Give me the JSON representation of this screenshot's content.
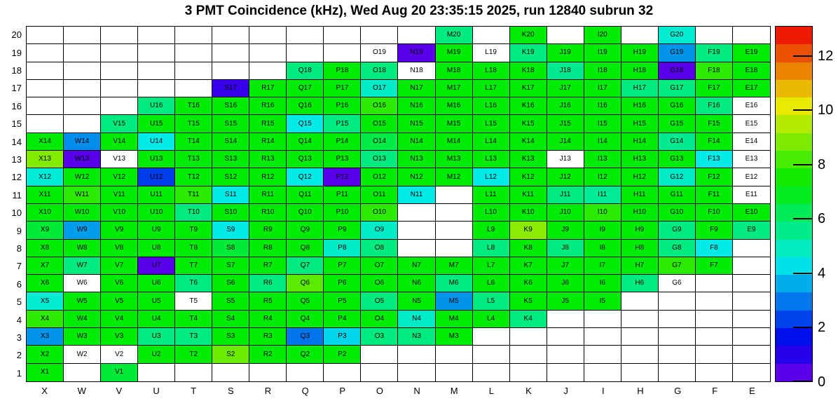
{
  "page": {
    "title": "3 PMT Coincidence (kHz), Wed Aug 20 23:35:15 2025, run 12840 subrun 32"
  },
  "chart_data": {
    "type": "heatmap",
    "title": "3 PMT Coincidence (kHz), Wed Aug 20 23:35:15 2025, run 12840 subrun 32",
    "unit": "kHz",
    "x_categories": [
      "X",
      "W",
      "V",
      "U",
      "T",
      "S",
      "R",
      "Q",
      "P",
      "O",
      "N",
      "M",
      "L",
      "K",
      "J",
      "I",
      "H",
      "G",
      "F",
      "E"
    ],
    "y_min": 1,
    "y_max": 20,
    "colorbar": {
      "min": 0,
      "max": 13.1,
      "ticks": [
        0,
        2,
        4,
        6,
        8,
        10,
        12
      ],
      "bands": 20,
      "palette": "rainbow-violet-to-red"
    },
    "note_null_cells": "white cell drawn with channel label but no rate",
    "cells": {
      "M20": 5.7,
      "K20": 7.2,
      "I20": 7.2,
      "G20": 4.7,
      "O19": null,
      "N19": 0.35,
      "M19": 7.2,
      "L19": null,
      "K19": 5.7,
      "J19": 7.2,
      "I19": 7.2,
      "H19": 7.2,
      "G19": 3.3,
      "F19": 5.7,
      "E19": 7.2,
      "Q18": 5.7,
      "P18": 7.2,
      "O18": 5.7,
      "N18": null,
      "M18": 7.2,
      "L18": 7.2,
      "K18": 7.2,
      "J18": 5.5,
      "I18": 7.2,
      "H18": 7.2,
      "G18": 0.35,
      "F18": 7.8,
      "E18": 7.2,
      "S17": 0.75,
      "R17": 7.2,
      "Q17": 7.2,
      "P17": 7.2,
      "O17": 4.8,
      "N17": 7.2,
      "M17": 7.2,
      "L17": 7.2,
      "K17": 7.2,
      "J17": 7.2,
      "I17": 7.2,
      "H17": 5.7,
      "G17": 5.7,
      "F17": 7.2,
      "E17": 7.2,
      "U16": 5.7,
      "T16": 7.2,
      "S16": 7.2,
      "R16": 7.2,
      "Q16": 7.2,
      "P16": 7.2,
      "O16": 7.8,
      "N16": 7.2,
      "M16": 7.2,
      "L16": 7.2,
      "K16": 7.2,
      "J16": 7.2,
      "I16": 7.2,
      "H16": 7.2,
      "G16": 7.2,
      "F16": 5.7,
      "E16": null,
      "V15": 5.7,
      "U15": 7.2,
      "T15": 7.2,
      "S15": 7.2,
      "R15": 7.2,
      "Q15": 4.4,
      "P15": 5.7,
      "O15": 7.2,
      "N15": 7.2,
      "M15": 7.2,
      "L15": 7.2,
      "K15": 7.2,
      "J15": 7.2,
      "I15": 7.2,
      "H15": 7.2,
      "G15": 7.2,
      "F15": 7.2,
      "E15": null,
      "X14": 7.2,
      "W14": 3.2,
      "V14": 7.2,
      "U14": 4.4,
      "T14": 7.2,
      "S14": 7.2,
      "R14": 7.2,
      "Q14": 7.2,
      "P14": 7.2,
      "O14": 6.4,
      "N14": 7.2,
      "M14": 7.2,
      "L14": 7.2,
      "K14": 7.2,
      "J14": 7.2,
      "I14": 7.2,
      "H14": 7.2,
      "G14": 5.5,
      "F14": 7.2,
      "E14": null,
      "X13": 8.9,
      "W13": 0.35,
      "V13": null,
      "U13": 7.2,
      "T13": 7.2,
      "S13": 7.2,
      "R13": 7.2,
      "Q13": 7.2,
      "P13": 7.2,
      "O13": 5.7,
      "N13": 7.2,
      "M13": 7.2,
      "L13": 7.2,
      "K13": 7.2,
      "J13": null,
      "I13": 7.2,
      "H13": 7.2,
      "G13": 7.2,
      "F13": 4.4,
      "E13": null,
      "X12": 4.6,
      "W12": 7.2,
      "V12": 7.2,
      "U12": 2.2,
      "T12": 7.2,
      "S12": 7.2,
      "R12": 7.2,
      "Q12": 4.4,
      "P12": 0.35,
      "O12": 7.2,
      "N12": 7.2,
      "M12": 7.2,
      "L12": 4.4,
      "K12": 7.2,
      "J12": 7.2,
      "I12": 7.2,
      "H12": 7.2,
      "G12": 4.8,
      "F12": 7.2,
      "E12": null,
      "X11": 7.2,
      "W11": 7.8,
      "V11": 7.2,
      "U11": 7.2,
      "T11": 7.8,
      "S11": 4.4,
      "R11": 7.2,
      "Q11": 7.2,
      "P11": 7.2,
      "O11": 7.2,
      "N11": 4.4,
      "L11": 7.2,
      "K11": 7.2,
      "J11": 5.7,
      "I11": 5.4,
      "H11": 7.2,
      "G11": 7.2,
      "F11": 7.2,
      "E11": null,
      "X10": 7.2,
      "W10": 7.2,
      "V10": 7.2,
      "U10": 7.2,
      "T10": 5.7,
      "S10": 7.2,
      "R10": 7.2,
      "Q10": 7.2,
      "P10": 7.2,
      "O10": 7.8,
      "L10": 7.2,
      "K10": 7.2,
      "J10": 7.2,
      "I10": 7.8,
      "H10": 7.2,
      "G10": 7.2,
      "F10": 7.2,
      "E10": 7.2,
      "X9": 6.6,
      "W9": 3.4,
      "V9": 7.2,
      "U9": 7.2,
      "T9": 7.2,
      "S9": 4.4,
      "R9": 7.2,
      "Q9": 7.2,
      "P9": 7.2,
      "O9": 4.8,
      "L9": 7.2,
      "K9": 9.0,
      "J9": 7.2,
      "I9": 7.2,
      "H9": 7.2,
      "G9": 5.7,
      "F9": 7.2,
      "E9": 5.7,
      "X8": 7.2,
      "W8": 7.2,
      "V8": 7.2,
      "U8": 7.2,
      "T8": 7.2,
      "S8": 6.6,
      "R8": 7.2,
      "Q8": 7.2,
      "P8": 4.8,
      "O8": 5.7,
      "L8": 5.7,
      "K8": 7.2,
      "J8": 5.7,
      "I8": 7.2,
      "H8": 7.2,
      "G8": 5.7,
      "F8": 4.4,
      "X7": 7.2,
      "W7": 5.7,
      "V7": 7.2,
      "U7": 0.35,
      "T7": 7.2,
      "S7": 7.2,
      "R7": 7.2,
      "Q7": 5.7,
      "P7": 7.2,
      "O7": 7.2,
      "N7": 7.2,
      "M7": 7.2,
      "L7": 7.2,
      "K7": 7.2,
      "J7": 7.2,
      "I7": 7.2,
      "H7": 7.2,
      "G7": 7.8,
      "F7": 7.2,
      "X6": 7.2,
      "W6": null,
      "V6": 7.2,
      "U6": 7.2,
      "T6": 5.7,
      "S6": 7.2,
      "R6": 5.7,
      "Q6": 8.4,
      "P6": 7.2,
      "O6": 7.2,
      "N6": 7.2,
      "M6": 5.7,
      "L6": 7.2,
      "K6": 7.2,
      "J6": 7.2,
      "I6": 7.2,
      "H6": 5.7,
      "G6": null,
      "X5": 4.7,
      "W5": 7.2,
      "V5": 7.2,
      "U5": 7.2,
      "T5": null,
      "S5": 7.2,
      "R5": 7.2,
      "Q5": 7.2,
      "P5": 7.2,
      "O5": 5.7,
      "N5": 7.2,
      "M5": 3.3,
      "L5": 5.7,
      "K5": 7.2,
      "J5": 7.2,
      "I5": 7.2,
      "X4": 7.8,
      "W4": 7.2,
      "V4": 7.2,
      "U4": 7.2,
      "T4": 7.2,
      "S4": 7.2,
      "R4": 7.2,
      "Q4": 7.2,
      "P4": 7.2,
      "O4": 7.2,
      "N4": 4.8,
      "M4": 7.2,
      "L4": 7.2,
      "K4": 5.7,
      "X3": 3.3,
      "W3": 7.2,
      "V3": 7.2,
      "U3": 5.7,
      "T3": 5.7,
      "S3": 7.2,
      "R3": 7.2,
      "Q3": 2.9,
      "P3": 4.1,
      "O3": 5.7,
      "N3": 5.7,
      "M3": 7.2,
      "X2": 7.2,
      "W2": null,
      "V2": null,
      "U2": 7.2,
      "T2": 7.2,
      "S2": 8.6,
      "R2": 7.2,
      "Q2": 7.2,
      "P2": 7.2,
      "X1": 7.2,
      "V1": 6.6
    }
  }
}
